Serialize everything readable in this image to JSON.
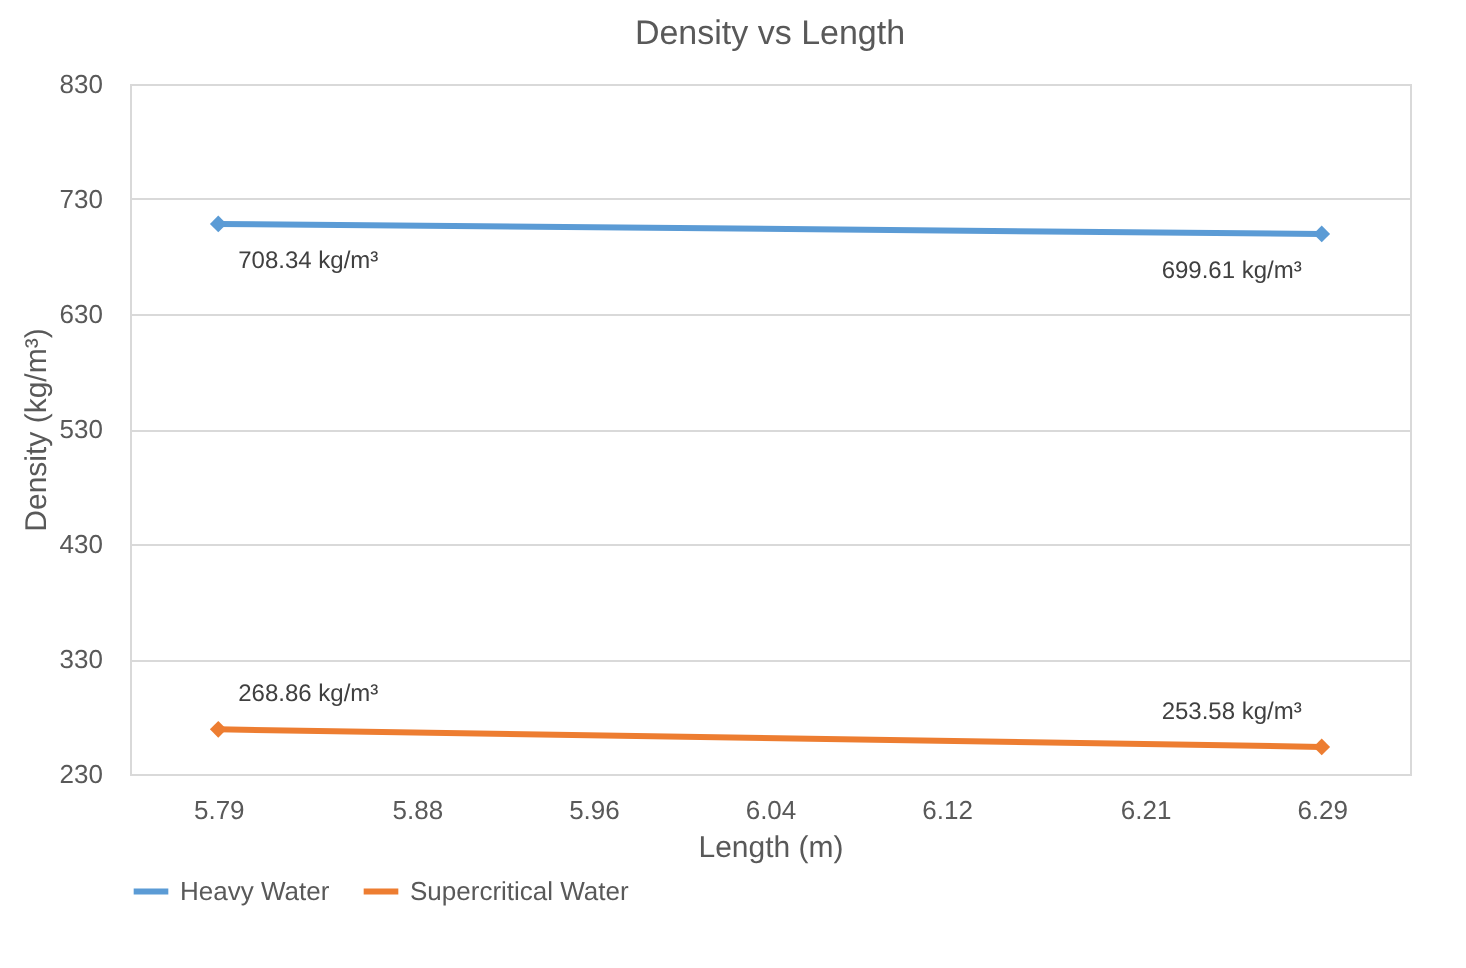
{
  "chart_data": {
    "type": "line",
    "title": "Density vs Length",
    "xlabel": "Length (m)",
    "ylabel": "Density (kg/m³)",
    "x": [
      5.79,
      6.29
    ],
    "series": [
      {
        "name": "Heavy Water",
        "color": "#5b9bd5",
        "values": [
          708.34,
          699.61
        ],
        "value_labels": [
          "708.34 kg/m³",
          "699.61 kg/m³"
        ]
      },
      {
        "name": "Supercritical Water",
        "color": "#ed7d31",
        "values": [
          268.86,
          253.58
        ],
        "value_labels": [
          "268.86 kg/m³",
          "253.58 kg/m³"
        ]
      }
    ],
    "xlim": [
      5.75,
      6.33
    ],
    "xticks": [
      5.79,
      5.88,
      5.96,
      6.04,
      6.12,
      6.21,
      6.29
    ],
    "ylim": [
      230,
      830
    ],
    "yticks": [
      230,
      330,
      430,
      530,
      630,
      730,
      830
    ],
    "grid": "y",
    "legend": "bottom",
    "marker": "diamond",
    "line_style": "solid"
  }
}
